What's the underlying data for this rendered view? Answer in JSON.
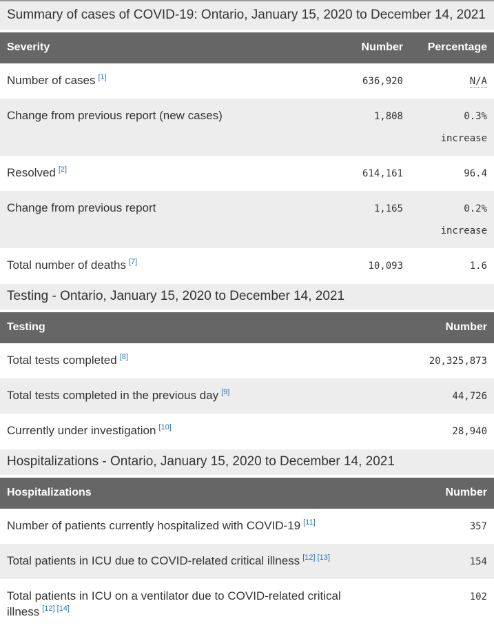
{
  "page_title": "Summary of cases of COVID-19: Ontario, January 15, 2020 to December 14, 2021",
  "colors": {
    "table_header_bg": "#666666",
    "table_header_text": "#ffffff",
    "band_bg": "#ededed",
    "zebra_row_bg": "#ededed",
    "body_text": "#333333",
    "footnote_link": "#2b73bf"
  },
  "severity_table": {
    "columns": [
      "Severity",
      "Number",
      "Percentage"
    ],
    "rows": [
      {
        "label": "Number of cases",
        "footnotes": [
          "[1]"
        ],
        "number": "636,920",
        "percentage": "N/A",
        "percentage_is_abbr": true
      },
      {
        "label": "Change from previous report (new cases)",
        "footnotes": [],
        "number": "1,808",
        "percentage": "0.3%",
        "percentage_note": "increase"
      },
      {
        "label": "Resolved",
        "footnotes": [
          "[2]"
        ],
        "number": "614,161",
        "percentage": "96.4"
      },
      {
        "label": "Change from previous report",
        "footnotes": [],
        "number": "1,165",
        "percentage": "0.2%",
        "percentage_note": "increase"
      },
      {
        "label": "Total number of deaths",
        "footnotes": [
          "[7]"
        ],
        "number": "10,093",
        "percentage": "1.6"
      }
    ]
  },
  "testing_section": {
    "title": "Testing - Ontario, January 15, 2020 to December 14, 2021",
    "table": {
      "columns": [
        "Testing",
        "Number"
      ],
      "rows": [
        {
          "label": "Total tests completed",
          "footnotes": [
            "[8]"
          ],
          "number": "20,325,873"
        },
        {
          "label": "Total tests completed in the previous day",
          "footnotes": [
            "[9]"
          ],
          "number": "44,726"
        },
        {
          "label": "Currently under investigation",
          "footnotes": [
            "[10]"
          ],
          "number": "28,940"
        }
      ]
    }
  },
  "hospitalizations_section": {
    "title": "Hospitalizations - Ontario, January 15, 2020 to December 14, 2021",
    "table": {
      "columns": [
        "Hospitalizations",
        "Number"
      ],
      "rows": [
        {
          "label": "Number of patients currently hospitalized with COVID-19",
          "footnotes": [
            "[11]"
          ],
          "number": "357"
        },
        {
          "label": "Total patients in ICU due to COVID-related critical illness",
          "footnotes": [
            "[12]",
            "[13]"
          ],
          "number": "154"
        },
        {
          "label": "Total patients in ICU on a ventilator due to COVID-related critical illness",
          "footnotes": [
            "[12]",
            "[14]"
          ],
          "number": "102"
        }
      ]
    }
  }
}
